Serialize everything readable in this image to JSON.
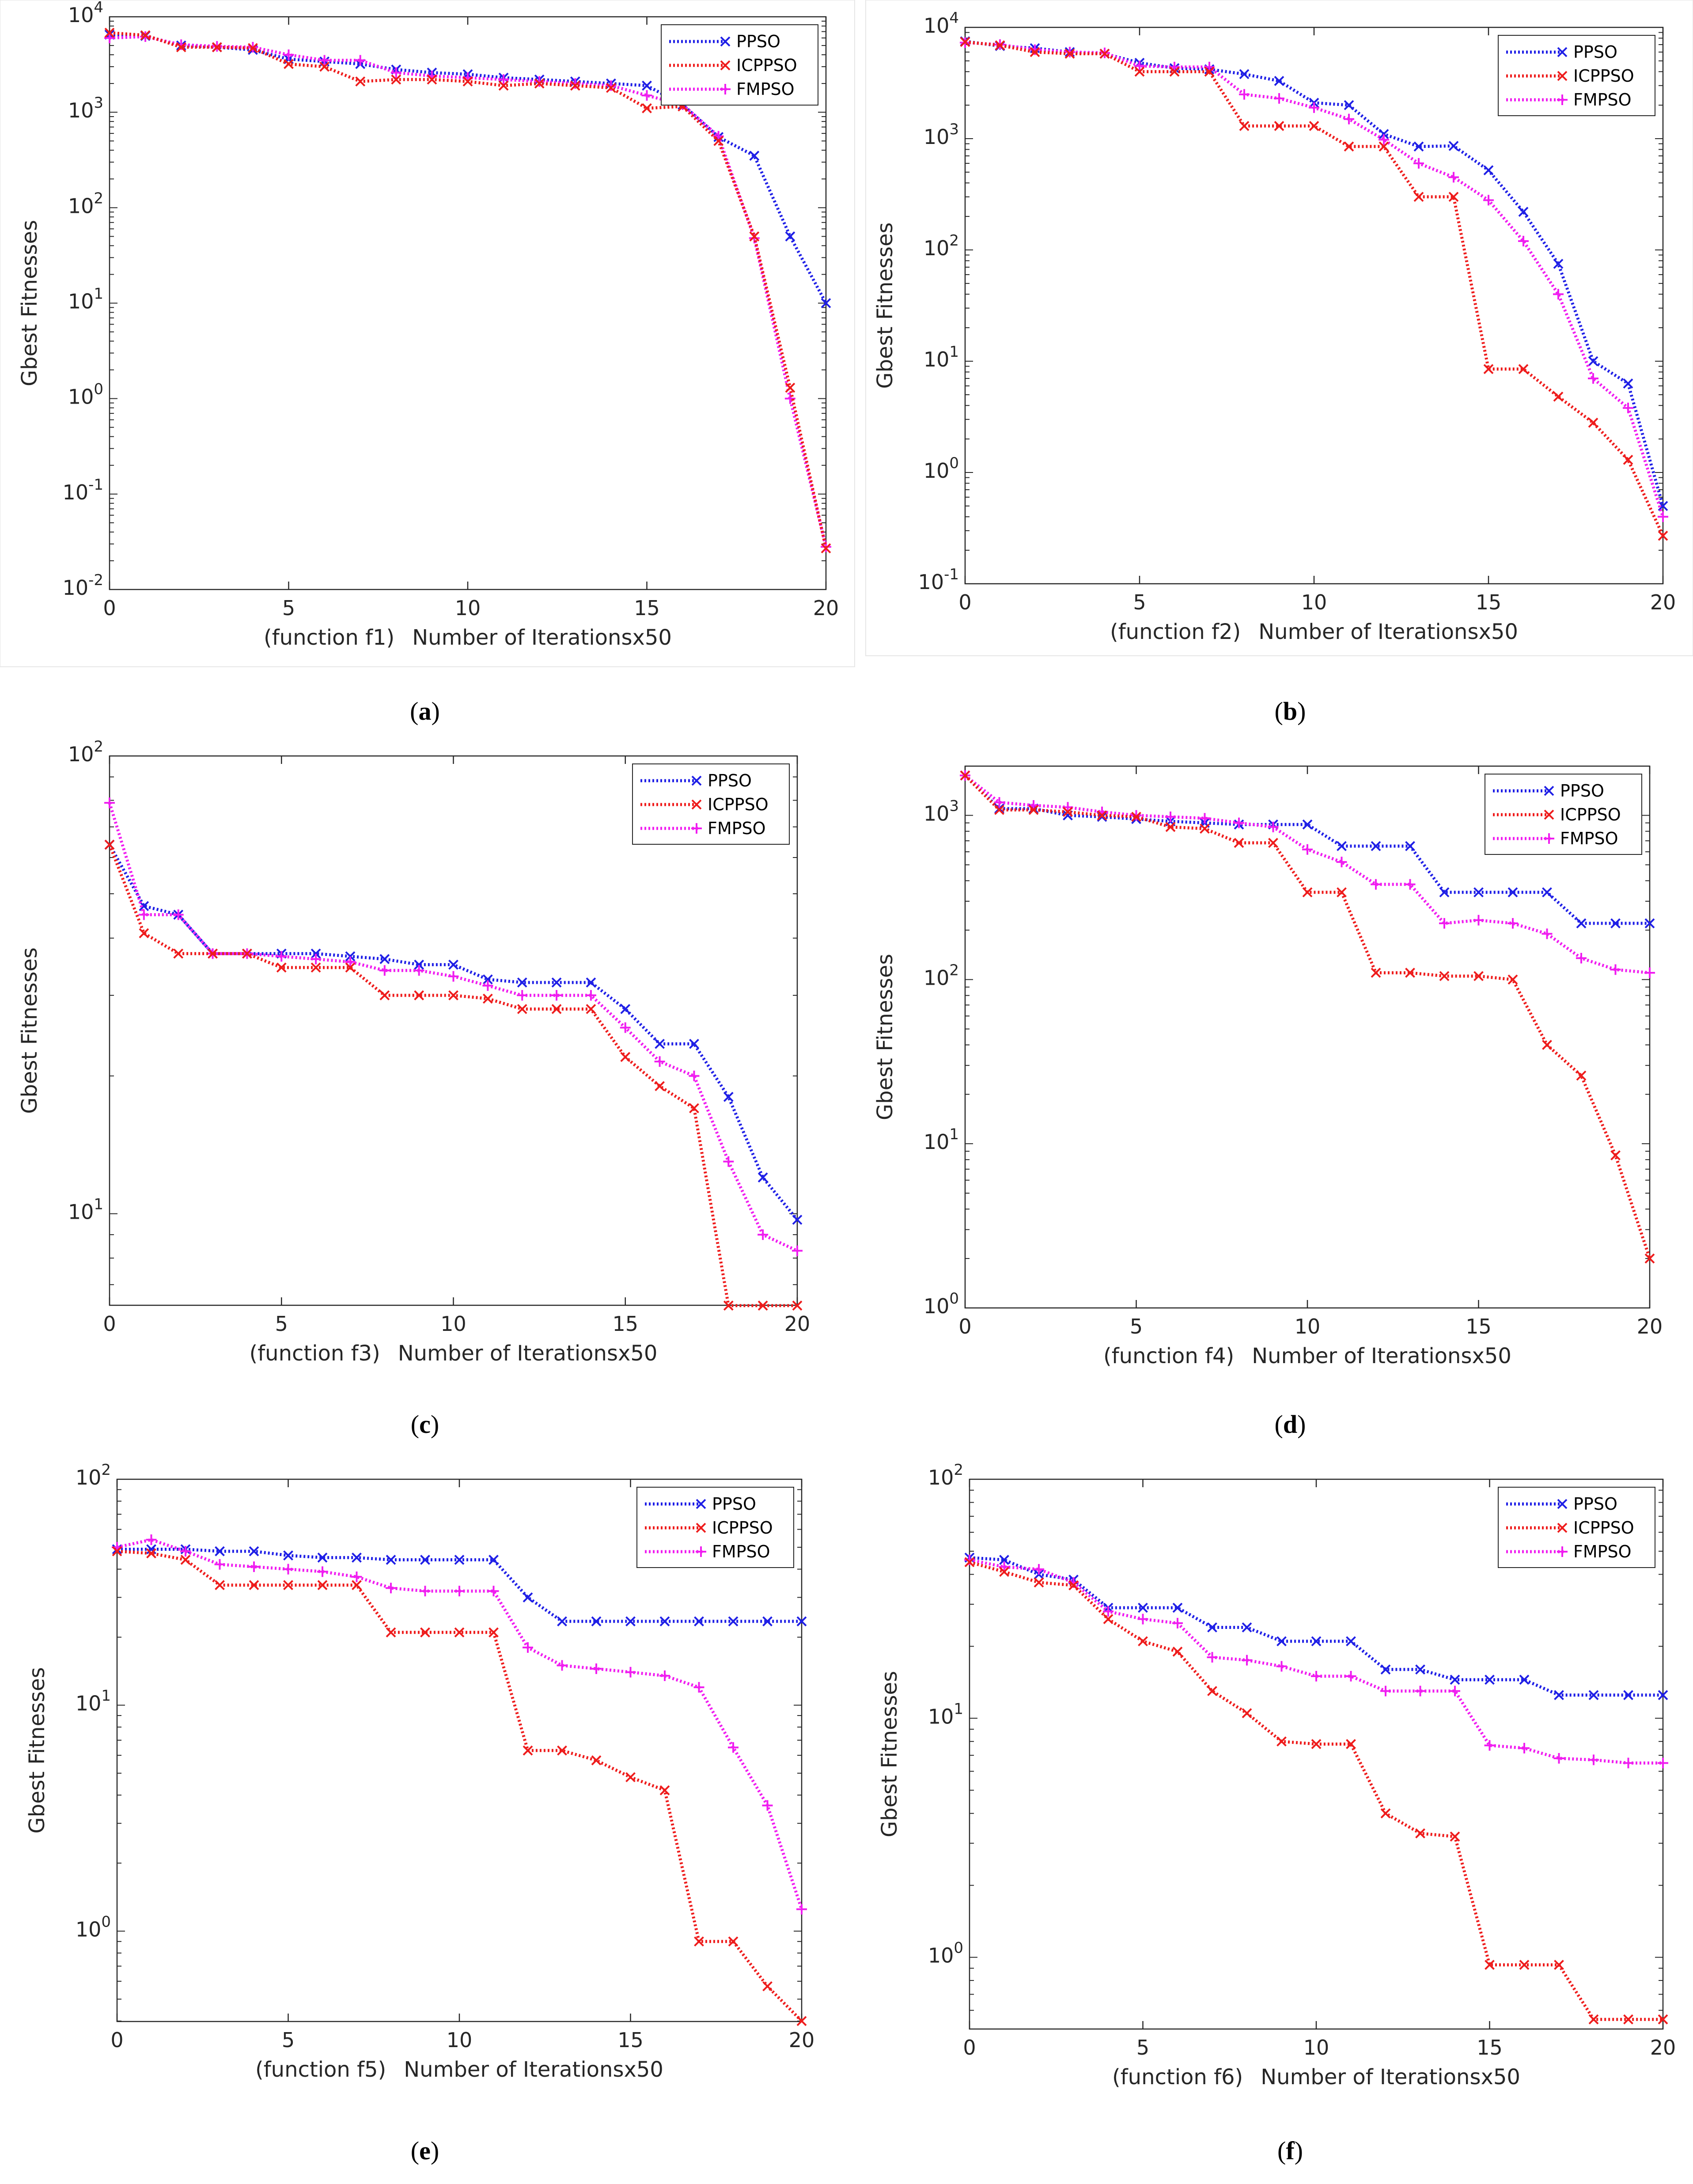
{
  "figure": {
    "colors": {
      "PPSO": "#1f1fe6",
      "ICPPSO": "#ee1c1c",
      "FMPSO": "#f01df0",
      "axis": "#262626",
      "tick_text": "#262626",
      "frame": "#e6e6e6"
    }
  },
  "chart_data": [
    {
      "id": "a",
      "type": "line",
      "yscale": "log",
      "caption_letter": "a",
      "xlabel_func": "(function f1)",
      "xlabel_main": "Number of Iterationsx50",
      "ylabel": "Gbest Fitnesses",
      "xlim": [
        0,
        20
      ],
      "ylim_exp": [
        -2,
        4
      ],
      "xticks": [
        "0",
        "5",
        "10",
        "15",
        "20"
      ],
      "yticks": [
        {
          "base": "10",
          "exp": "-2"
        },
        {
          "base": "10",
          "exp": "-1"
        },
        {
          "base": "10",
          "exp": "0"
        },
        {
          "base": "10",
          "exp": "1"
        },
        {
          "base": "10",
          "exp": "2"
        },
        {
          "base": "10",
          "exp": "3"
        },
        {
          "base": "10",
          "exp": "4"
        }
      ],
      "legend": [
        "PPSO",
        "ICPPSO",
        "FMPSO"
      ],
      "legend_position": "top-right",
      "x": [
        0,
        1,
        2,
        3,
        4,
        5,
        6,
        7,
        8,
        9,
        10,
        11,
        12,
        13,
        14,
        15,
        16,
        17,
        18,
        19,
        20
      ],
      "series": [
        {
          "name": "PPSO",
          "marker": "x",
          "values": [
            6500,
            6300,
            5000,
            4800,
            4500,
            3600,
            3400,
            3200,
            2800,
            2600,
            2500,
            2300,
            2200,
            2100,
            2000,
            1900,
            1200,
            550,
            350,
            50,
            10
          ]
        },
        {
          "name": "ICPPSO",
          "marker": "x",
          "values": [
            6800,
            6400,
            4800,
            4800,
            4700,
            3200,
            3000,
            2100,
            2200,
            2200,
            2100,
            1900,
            2000,
            1900,
            1800,
            1100,
            1150,
            500,
            50,
            1.3,
            0.027
          ]
        },
        {
          "name": "FMPSO",
          "marker": "+",
          "values": [
            6000,
            6200,
            5100,
            4900,
            4800,
            4000,
            3500,
            3500,
            2600,
            2400,
            2300,
            2200,
            2100,
            2000,
            1900,
            1500,
            1200,
            560,
            48,
            1.0,
            0.028
          ]
        }
      ]
    },
    {
      "id": "b",
      "type": "line",
      "yscale": "log",
      "caption_letter": "b",
      "xlabel_func": "(function f2)",
      "xlabel_main": "Number of Iterationsx50",
      "ylabel": "Gbest Fitnesses",
      "xlim": [
        0,
        20
      ],
      "ylim_exp": [
        -1,
        4
      ],
      "xticks": [
        "0",
        "5",
        "10",
        "15",
        "20"
      ],
      "yticks": [
        {
          "base": "10",
          "exp": "-1"
        },
        {
          "base": "10",
          "exp": "0"
        },
        {
          "base": "10",
          "exp": "1"
        },
        {
          "base": "10",
          "exp": "2"
        },
        {
          "base": "10",
          "exp": "3"
        },
        {
          "base": "10",
          "exp": "4"
        }
      ],
      "legend": [
        "PPSO",
        "ICPPSO",
        "FMPSO"
      ],
      "legend_position": "top-right",
      "x": [
        0,
        1,
        2,
        3,
        4,
        5,
        6,
        7,
        8,
        9,
        10,
        11,
        12,
        13,
        14,
        15,
        16,
        17,
        18,
        19,
        20
      ],
      "series": [
        {
          "name": "PPSO",
          "marker": "x",
          "values": [
            7500,
            6800,
            6500,
            6000,
            5800,
            4800,
            4300,
            4200,
            3800,
            3300,
            2100,
            2000,
            1100,
            850,
            860,
            520,
            220,
            75,
            10,
            6.3,
            0.5
          ]
        },
        {
          "name": "ICPPSO",
          "marker": "x",
          "values": [
            7400,
            6900,
            6000,
            5800,
            5800,
            4000,
            4000,
            4000,
            1300,
            1300,
            1300,
            850,
            850,
            300,
            300,
            8.5,
            8.5,
            4.8,
            2.8,
            1.3,
            0.27
          ]
        },
        {
          "name": "FMPSO",
          "marker": "+",
          "values": [
            7300,
            7000,
            6300,
            6000,
            5900,
            4500,
            4400,
            4400,
            2500,
            2300,
            1900,
            1500,
            980,
            600,
            450,
            280,
            120,
            40,
            7,
            3.8,
            0.4
          ]
        }
      ]
    },
    {
      "id": "c",
      "type": "line",
      "yscale": "log",
      "caption_letter": "c",
      "xlabel_func": "(function f3)",
      "xlabel_main": "Number of Iterationsx50",
      "ylabel": "Gbest Fitnesses",
      "xlim": [
        0,
        20
      ],
      "ylim_exp": [
        0.8,
        2
      ],
      "xticks": [
        "0",
        "5",
        "10",
        "15",
        "20"
      ],
      "yticks": [
        {
          "base": "10",
          "exp": "1"
        },
        {
          "base": "10",
          "exp": "2"
        }
      ],
      "legend": [
        "PPSO",
        "ICPPSO",
        "FMPSO"
      ],
      "legend_position": "top-right",
      "x": [
        0,
        1,
        2,
        3,
        4,
        5,
        6,
        7,
        8,
        9,
        10,
        11,
        12,
        13,
        14,
        15,
        16,
        17,
        18,
        19,
        20
      ],
      "series": [
        {
          "name": "PPSO",
          "marker": "x",
          "values": [
            64,
            47,
            45,
            37,
            37,
            37,
            37,
            36.5,
            36,
            35,
            35,
            32.5,
            32,
            32,
            32,
            28,
            23.5,
            23.5,
            18,
            12,
            9.7
          ]
        },
        {
          "name": "ICPPSO",
          "marker": "x",
          "values": [
            64,
            41,
            37,
            37,
            37,
            34.5,
            34.5,
            34.5,
            30,
            30,
            30,
            29.5,
            28,
            28,
            28,
            22,
            19,
            17,
            6.3,
            6.3,
            6.3
          ]
        },
        {
          "name": "FMPSO",
          "marker": "+",
          "values": [
            79,
            45,
            45,
            37,
            37,
            36.5,
            36,
            35.5,
            34,
            34,
            33,
            31.5,
            30,
            30,
            30,
            25.5,
            21.5,
            20,
            13,
            9,
            8.3
          ]
        }
      ]
    },
    {
      "id": "d",
      "type": "line",
      "yscale": "log",
      "caption_letter": "d",
      "xlabel_func": "(function f4)",
      "xlabel_main": "Number of Iterationsx50",
      "ylabel": "Gbest Fitnesses",
      "xlim": [
        0,
        20
      ],
      "ylim_exp": [
        0,
        3.3
      ],
      "xticks": [
        "0",
        "5",
        "10",
        "15",
        "20"
      ],
      "yticks": [
        {
          "base": "10",
          "exp": "0"
        },
        {
          "base": "10",
          "exp": "1"
        },
        {
          "base": "10",
          "exp": "2"
        },
        {
          "base": "10",
          "exp": "3"
        }
      ],
      "legend": [
        "PPSO",
        "ICPPSO",
        "FMPSO"
      ],
      "legend_position": "top-right",
      "x": [
        0,
        1,
        2,
        3,
        4,
        5,
        6,
        7,
        8,
        9,
        10,
        11,
        12,
        13,
        14,
        15,
        16,
        17,
        18,
        19,
        20
      ],
      "series": [
        {
          "name": "PPSO",
          "marker": "x",
          "values": [
            1750,
            1100,
            1100,
            1000,
            980,
            950,
            920,
            900,
            880,
            880,
            880,
            650,
            650,
            650,
            340,
            340,
            340,
            340,
            220,
            220,
            220
          ]
        },
        {
          "name": "ICPPSO",
          "marker": "x",
          "values": [
            1750,
            1080,
            1080,
            1050,
            1000,
            980,
            850,
            830,
            680,
            680,
            340,
            340,
            110,
            110,
            105,
            105,
            100,
            40,
            26,
            8.5,
            2
          ]
        },
        {
          "name": "FMPSO",
          "marker": "+",
          "values": [
            1750,
            1200,
            1150,
            1120,
            1050,
            1000,
            980,
            960,
            900,
            850,
            620,
            520,
            380,
            380,
            220,
            230,
            220,
            190,
            135,
            115,
            110
          ]
        }
      ]
    },
    {
      "id": "e",
      "type": "line",
      "yscale": "log",
      "caption_letter": "e",
      "xlabel_func": "(function f5)",
      "xlabel_main": "Number of Iterationsx50",
      "ylabel": "Gbest Fitnesses",
      "xlim": [
        0,
        20
      ],
      "ylim_exp": [
        -0.4,
        2
      ],
      "xticks": [
        "0",
        "5",
        "10",
        "15",
        "20"
      ],
      "yticks": [
        {
          "base": "10",
          "exp": "0"
        },
        {
          "base": "10",
          "exp": "1"
        },
        {
          "base": "10",
          "exp": "2"
        }
      ],
      "legend": [
        "PPSO",
        "ICPPSO",
        "FMPSO"
      ],
      "legend_position": "top-right",
      "x": [
        0,
        1,
        2,
        3,
        4,
        5,
        6,
        7,
        8,
        9,
        10,
        11,
        12,
        13,
        14,
        15,
        16,
        17,
        18,
        19,
        20
      ],
      "series": [
        {
          "name": "PPSO",
          "marker": "x",
          "values": [
            49,
            49,
            49,
            48,
            48,
            46,
            45,
            45,
            44,
            44,
            44,
            44,
            30,
            23.5,
            23.5,
            23.5,
            23.5,
            23.5,
            23.5,
            23.5,
            23.5
          ]
        },
        {
          "name": "ICPPSO",
          "marker": "x",
          "values": [
            48,
            47,
            44,
            34,
            34,
            34,
            34,
            34,
            21,
            21,
            21,
            21,
            6.3,
            6.3,
            5.7,
            4.8,
            4.2,
            0.9,
            0.9,
            0.57,
            0.4
          ]
        },
        {
          "name": "FMPSO",
          "marker": "+",
          "values": [
            50,
            54,
            48,
            42,
            41,
            40,
            39,
            37,
            33,
            32,
            32,
            32,
            18,
            15,
            14.5,
            14,
            13.5,
            12,
            6.5,
            3.6,
            1.25
          ]
        }
      ]
    },
    {
      "id": "f",
      "type": "line",
      "yscale": "log",
      "caption_letter": "f",
      "xlabel_func": "(function f6)",
      "xlabel_main": "Number of Iterationsx50",
      "ylabel": "Gbest Fitnesses",
      "xlim": [
        0,
        20
      ],
      "ylim_exp": [
        -0.3,
        2
      ],
      "xticks": [
        "0",
        "5",
        "10",
        "15",
        "20"
      ],
      "yticks": [
        {
          "base": "10",
          "exp": "0"
        },
        {
          "base": "10",
          "exp": "1"
        },
        {
          "base": "10",
          "exp": "2"
        }
      ],
      "legend": [
        "PPSO",
        "ICPPSO",
        "FMPSO"
      ],
      "legend_position": "top-right",
      "x": [
        0,
        1,
        2,
        3,
        4,
        5,
        6,
        7,
        8,
        9,
        10,
        11,
        12,
        13,
        14,
        15,
        16,
        17,
        18,
        19,
        20
      ],
      "series": [
        {
          "name": "PPSO",
          "marker": "x",
          "values": [
            47,
            46,
            40,
            38,
            29,
            29,
            29,
            24,
            24,
            21,
            21,
            21,
            16,
            16,
            14.5,
            14.5,
            14.5,
            12.5,
            12.5,
            12.5,
            12.5
          ]
        },
        {
          "name": "ICPPSO",
          "marker": "x",
          "values": [
            45,
            41,
            37,
            36,
            26,
            21,
            19,
            13,
            10.5,
            8,
            7.8,
            7.8,
            4,
            3.3,
            3.2,
            0.93,
            0.93,
            0.93,
            0.55,
            0.55,
            0.55
          ]
        },
        {
          "name": "FMPSO",
          "marker": "+",
          "values": [
            46,
            43,
            42,
            37,
            28,
            26,
            25,
            18,
            17.5,
            16.5,
            15,
            15,
            13,
            13,
            13,
            7.7,
            7.5,
            6.8,
            6.7,
            6.5,
            6.5
          ]
        }
      ]
    }
  ]
}
